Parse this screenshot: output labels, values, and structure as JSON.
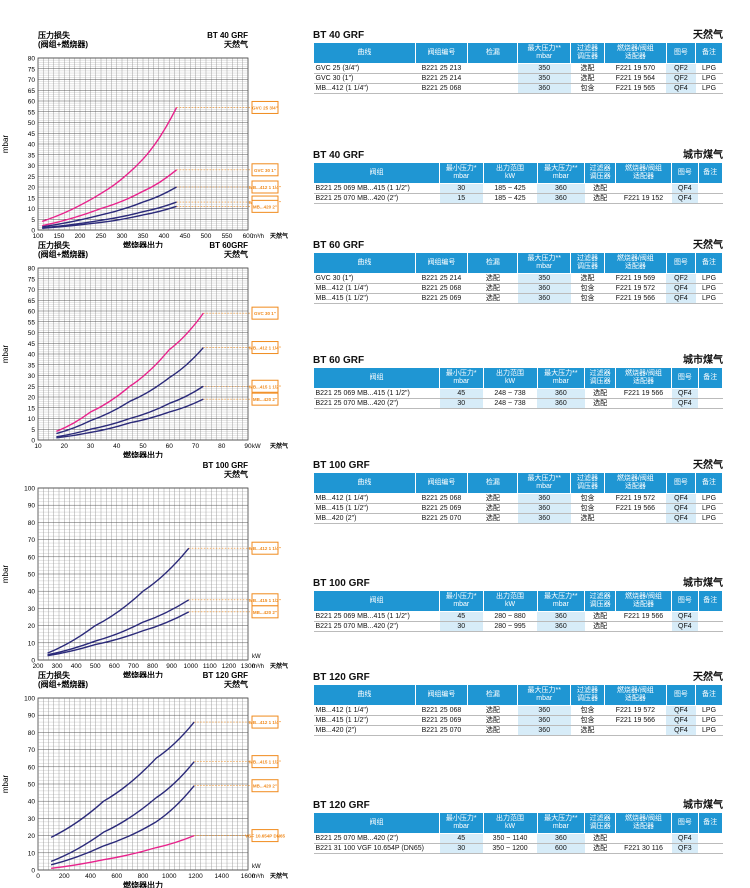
{
  "charts": [
    {
      "id": "c40",
      "title1": "压力损失",
      "title2": "(阀组+燃烧器)",
      "model": "BT 40 GRF",
      "gas": "天然气",
      "ylabel": "mbar",
      "xlabel": "燃烧器出力",
      "unit": "m³/h",
      "unit_gas": "天然气",
      "chart_data": {
        "type": "line",
        "xlim": [
          100,
          600
        ],
        "ylim": [
          0,
          80
        ],
        "xticks": [
          100,
          150,
          200,
          250,
          300,
          350,
          400,
          450,
          500,
          550,
          600
        ],
        "yticks": [
          0,
          5,
          10,
          15,
          20,
          25,
          30,
          35,
          40,
          45,
          50,
          55,
          60,
          65,
          70,
          75,
          80
        ],
        "grid": true,
        "series": [
          {
            "color": "#e8238c",
            "x": [
              110,
              250,
              350,
              430
            ],
            "y": [
              4,
              17,
              33,
              57
            ]
          },
          {
            "color": "#e8238c",
            "x": [
              110,
              250,
              350,
              430
            ],
            "y": [
              2,
              10,
              18,
              28
            ]
          },
          {
            "color": "#2b2a7a",
            "x": [
              110,
              250,
              350,
              430
            ],
            "y": [
              1.5,
              7,
              13,
              20
            ]
          },
          {
            "color": "#2b2a7a",
            "x": [
              110,
              250,
              350,
              430
            ],
            "y": [
              1,
              4.5,
              8.5,
              13
            ]
          },
          {
            "color": "#2b2a7a",
            "x": [
              110,
              250,
              350,
              430
            ],
            "y": [
              0.8,
              3.5,
              7,
              11
            ]
          }
        ],
        "tags": [
          "GVC 25 3/4\"",
          "GVC 30 1\"",
          "MB...412 1 1/4\"",
          "MB...415 1 1/2\"",
          "MB...420 2\""
        ]
      }
    },
    {
      "id": "c60",
      "title1": "压力损失",
      "title2": "(阀组+燃烧器)",
      "model": "BT 60GRF",
      "gas": "天然气",
      "ylabel": "mbar",
      "xlabel": "燃烧器出力",
      "unit": "kW",
      "unit_gas": "天然气",
      "chart_data": {
        "type": "line",
        "xlim": [
          10,
          90
        ],
        "ylim": [
          0,
          80
        ],
        "xticks": [
          10,
          20,
          30,
          40,
          50,
          60,
          70,
          80,
          90
        ],
        "yticks": [
          0,
          5,
          10,
          15,
          20,
          25,
          30,
          35,
          40,
          45,
          50,
          55,
          60,
          65,
          70,
          75,
          80
        ],
        "grid": true,
        "series": [
          {
            "color": "#e8238c",
            "x": [
              17,
              30,
              45,
              60,
              73
            ],
            "y": [
              4,
              13,
              25,
              42,
              59
            ]
          },
          {
            "color": "#2b2a7a",
            "x": [
              17,
              30,
              45,
              60,
              73
            ],
            "y": [
              3,
              9,
              18,
              29,
              43
            ]
          },
          {
            "color": "#2b2a7a",
            "x": [
              17,
              30,
              45,
              60,
              73
            ],
            "y": [
              1.5,
              5,
              10,
              17,
              25
            ]
          },
          {
            "color": "#2b2a7a",
            "x": [
              17,
              30,
              45,
              60,
              73
            ],
            "y": [
              1,
              3.5,
              8,
              13,
              19
            ]
          }
        ],
        "tags": [
          "GVC 30 1\"",
          "MB...412 1 1/4\"",
          "MB...415 1 1/2\"",
          "MB...420 2\""
        ]
      }
    },
    {
      "id": "c100",
      "title1": "",
      "title2": "",
      "model": "BT 100 GRF",
      "gas": "天然气",
      "ylabel": "mbar",
      "xlabel": "燃烧器出力",
      "unit": "m³/h",
      "unit_gas": "天然气",
      "unit2": "kW",
      "chart_data": {
        "type": "line",
        "xlim": [
          200,
          1300
        ],
        "ylim": [
          0,
          100
        ],
        "xticks": [
          200,
          300,
          400,
          500,
          600,
          700,
          800,
          900,
          1000,
          1100,
          1200,
          1300
        ],
        "yticks": [
          0,
          10,
          20,
          30,
          40,
          50,
          60,
          70,
          80,
          90,
          100
        ],
        "grid": true,
        "series": [
          {
            "color": "#2b2a7a",
            "x": [
              250,
              500,
              750,
              990
            ],
            "y": [
              4,
              20,
              40,
              65
            ]
          },
          {
            "color": "#2b2a7a",
            "x": [
              250,
              500,
              750,
              990
            ],
            "y": [
              3,
              11,
              22,
              35
            ]
          },
          {
            "color": "#2b2a7a",
            "x": [
              250,
              500,
              750,
              990
            ],
            "y": [
              2.5,
              9,
              17,
              28
            ]
          }
        ],
        "tags": [
          "MB...412 1 1/4\"",
          "MB...415 1 1/2\"",
          "MB...420 2\""
        ]
      }
    },
    {
      "id": "c120",
      "title1": "压力损失",
      "title2": "(阀组+燃烧器)",
      "model": "BT 120 GRF",
      "gas": "天然气",
      "ylabel": "mbar",
      "xlabel": "燃烧器出力",
      "unit": "m³/h",
      "unit_gas": "天然气",
      "unit2": "kW",
      "chart_data": {
        "type": "line",
        "xlim": [
          0,
          1600
        ],
        "ylim": [
          0,
          100
        ],
        "xticks": [
          0,
          200,
          400,
          600,
          800,
          1000,
          1200,
          1400,
          1600
        ],
        "yticks": [
          0,
          10,
          20,
          30,
          40,
          50,
          60,
          70,
          80,
          90,
          100
        ],
        "grid": true,
        "series": [
          {
            "color": "#2b2a7a",
            "x": [
              100,
              500,
              900,
              1190
            ],
            "y": [
              19,
              40,
              65,
              86
            ]
          },
          {
            "color": "#2b2a7a",
            "x": [
              100,
              500,
              900,
              1190
            ],
            "y": [
              5,
              22,
              42,
              63
            ]
          },
          {
            "color": "#2b2a7a",
            "x": [
              100,
              500,
              900,
              1190
            ],
            "y": [
              3,
              14,
              28,
              49
            ]
          },
          {
            "color": "#e8238c",
            "x": [
              100,
              500,
              900,
              1190
            ],
            "y": [
              1,
              6,
              13,
              20
            ]
          }
        ],
        "tags": [
          "MB...412 1 1/4\"",
          "MB...415 1 1/2\"",
          "MB...420 2\"",
          "VGF 10.654P DN65"
        ]
      }
    }
  ],
  "sections": [
    {
      "model": "BT 40 GRF",
      "gas": "天然气",
      "type": "ng",
      "headers": [
        "曲线",
        "阀组编号",
        "检漏",
        "最大压力**\nmbar",
        "过滤器\n调压器",
        "燃烧器/阀组\n适配器",
        "图号",
        "备注"
      ],
      "rows": [
        [
          "GVC 25",
          "(3/4\")",
          "B221 25 213",
          "",
          "350",
          "选配",
          "F221 19 570",
          "QF2",
          "LPG"
        ],
        [
          "GVC 30",
          "(1\")",
          "B221 25 214",
          "",
          "350",
          "选配",
          "F221 19 564",
          "QF2",
          "LPG"
        ],
        [
          "MB...412",
          "(1 1/4\")",
          "B221 25 068",
          "",
          "360",
          "包含",
          "F221 19 565",
          "QF4",
          "LPG"
        ]
      ]
    },
    {
      "model": "BT 40 GRF",
      "gas": "城市煤气",
      "type": "tg",
      "headers": [
        "阀组",
        "最小压力*\nmbar",
        "出力范围\nkW",
        "最大压力**\nmbar",
        "过滤器\n调压器",
        "燃烧器/阀组\n适配器",
        "图号",
        "备注"
      ],
      "rows": [
        [
          "B221 25 069 MB...415",
          "(1 1/2\")",
          "30",
          "185 ~ 425",
          "360",
          "选配",
          "",
          "QF4",
          ""
        ],
        [
          "B221 25 070 MB...420",
          "(2\")",
          "15",
          "185 ~ 425",
          "360",
          "选配",
          "F221 19 152",
          "QF4",
          ""
        ]
      ]
    },
    {
      "model": "BT 60 GRF",
      "gas": "天然气",
      "type": "ng",
      "headers": [
        "曲线",
        "阀组编号",
        "检漏",
        "最大压力**\nmbar",
        "过滤器\n调压器",
        "燃烧器/阀组\n适配器",
        "图号",
        "备注"
      ],
      "rows": [
        [
          "GVC 30",
          "(1\")",
          "B221 25 214",
          "选配",
          "350",
          "选配",
          "F221 19 569",
          "QF2",
          "LPG"
        ],
        [
          "MB...412",
          "(1 1/4\")",
          "B221 25 068",
          "选配",
          "360",
          "包含",
          "F221 19 572",
          "QF4",
          "LPG"
        ],
        [
          "MB...415",
          "(1 1/2\")",
          "B221 25 069",
          "选配",
          "360",
          "包含",
          "F221 19 566",
          "QF4",
          "LPG"
        ]
      ]
    },
    {
      "model": "BT 60 GRF",
      "gas": "城市煤气",
      "type": "tg",
      "headers": [
        "阀组",
        "最小压力*\nmbar",
        "出力范围\nkW",
        "最大压力**\nmbar",
        "过滤器\n调压器",
        "燃烧器/阀组\n适配器",
        "图号",
        "备注"
      ],
      "rows": [
        [
          "B221 25 069 MB...415",
          "(1 1/2\")",
          "45",
          "248 ~ 738",
          "360",
          "选配",
          "F221 19 566",
          "QF4",
          ""
        ],
        [
          "B221 25 070 MB...420",
          "(2\")",
          "30",
          "248 ~ 738",
          "360",
          "选配",
          "",
          "QF4",
          ""
        ]
      ]
    },
    {
      "model": "BT 100 GRF",
      "gas": "天然气",
      "type": "ng",
      "headers": [
        "曲线",
        "阀组编号",
        "检漏",
        "最大压力**\nmbar",
        "过滤器\n调压器",
        "燃烧器/阀组\n适配器",
        "图号",
        "备注"
      ],
      "rows": [
        [
          "MB...412",
          "(1 1/4\")",
          "B221 25 068",
          "选配",
          "360",
          "包含",
          "F221 19 572",
          "QF4",
          "LPG"
        ],
        [
          "MB...415",
          "(1 1/2\")",
          "B221 25 069",
          "选配",
          "360",
          "包含",
          "F221 19 566",
          "QF4",
          "LPG"
        ],
        [
          "MB...420",
          "(2\")",
          "B221 25 070",
          "选配",
          "360",
          "选配",
          "",
          "QF4",
          "LPG"
        ]
      ]
    },
    {
      "model": "BT 100 GRF",
      "gas": "城市煤气",
      "type": "tg",
      "headers": [
        "阀组",
        "最小压力*\nmbar",
        "出力范围\nkW",
        "最大压力**\nmbar",
        "过滤器\n调压器",
        "燃烧器/阀组\n适配器",
        "图号",
        "备注"
      ],
      "rows": [
        [
          "B221 25 069 MB...415",
          "(1 1/2\")",
          "45",
          "280 ~ 880",
          "360",
          "选配",
          "F221 19 566",
          "QF4",
          ""
        ],
        [
          "B221 25 070 MB...420",
          "(2\")",
          "30",
          "280 ~ 995",
          "360",
          "选配",
          "",
          "QF4",
          ""
        ]
      ]
    },
    {
      "model": "BT 120 GRF",
      "gas": "天然气",
      "type": "ng",
      "headers": [
        "曲线",
        "阀组编号",
        "检漏",
        "最大压力**\nmbar",
        "过滤器\n调压器",
        "燃烧器/阀组\n适配器",
        "图号",
        "备注"
      ],
      "rows": [
        [
          "MB...412",
          "(1 1/4\")",
          "B221 25 068",
          "选配",
          "360",
          "包含",
          "F221 19 572",
          "QF4",
          "LPG"
        ],
        [
          "MB...415",
          "(1 1/2\")",
          "B221 25 069",
          "选配",
          "360",
          "包含",
          "F221 19 566",
          "QF4",
          "LPG"
        ],
        [
          "MB...420",
          "(2\")",
          "B221 25 070",
          "选配",
          "360",
          "选配",
          "",
          "QF4",
          "LPG"
        ]
      ]
    },
    {
      "model": "BT 120 GRF",
      "gas": "城市煤气",
      "type": "tg",
      "headers": [
        "阀组",
        "最小压力*\nmbar",
        "出力范围\nkW",
        "最大压力**\nmbar",
        "过滤器\n调压器",
        "燃烧器/阀组\n适配器",
        "图号",
        "备注"
      ],
      "rows": [
        [
          "B221 25 070 MB...420",
          "(2\")",
          "45",
          "350 ~ 1140",
          "360",
          "选配",
          "",
          "QF4",
          ""
        ],
        [
          "B221 31 100 VGF 10.654P",
          "(DN65)",
          "30",
          "350 ~ 1200",
          "600",
          "选配",
          "F221 30 116",
          "QF3",
          ""
        ]
      ]
    }
  ]
}
